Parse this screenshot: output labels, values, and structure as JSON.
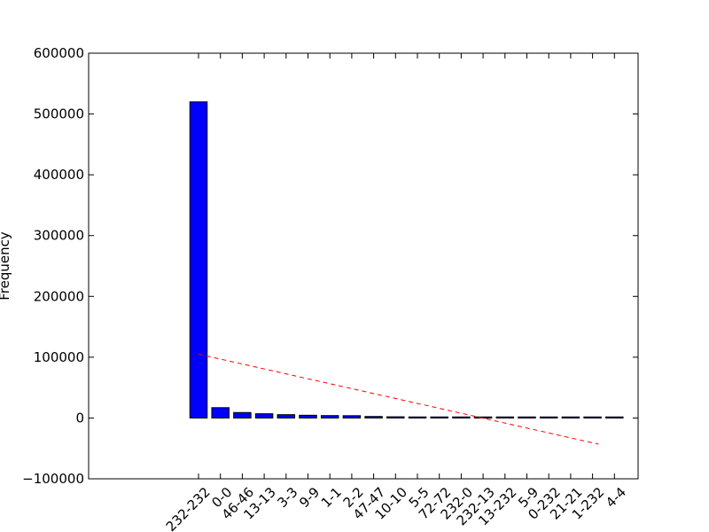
{
  "chart_data": {
    "type": "bar",
    "title": "",
    "xlabel": "",
    "ylabel": "Frequency",
    "ylim": [
      -100000,
      600000
    ],
    "yticks": [
      -100000,
      0,
      100000,
      200000,
      300000,
      400000,
      500000,
      600000
    ],
    "ytick_labels": [
      "−100000",
      "0",
      "100000",
      "200000",
      "300000",
      "400000",
      "500000",
      "600000"
    ],
    "categories": [
      "232-232",
      "0-0",
      "46-46",
      "13-13",
      "3-3",
      "9-9",
      "1-1",
      "2-2",
      "47-47",
      "10-10",
      "5-5",
      "72-72",
      "232-0",
      "232-13",
      "13-232",
      "5-9",
      "0-232",
      "21-21",
      "1-232",
      "4-4"
    ],
    "values": [
      520000,
      17000,
      9000,
      7000,
      5500,
      4500,
      4000,
      3800,
      2500,
      2000,
      1000,
      800,
      700,
      600,
      500,
      400,
      350,
      300,
      250,
      200
    ],
    "bar_color": "#0000ff",
    "trend_line": {
      "color": "#ff0000",
      "style": "dashed",
      "start": 105000,
      "end": -43000
    },
    "grid": false
  }
}
